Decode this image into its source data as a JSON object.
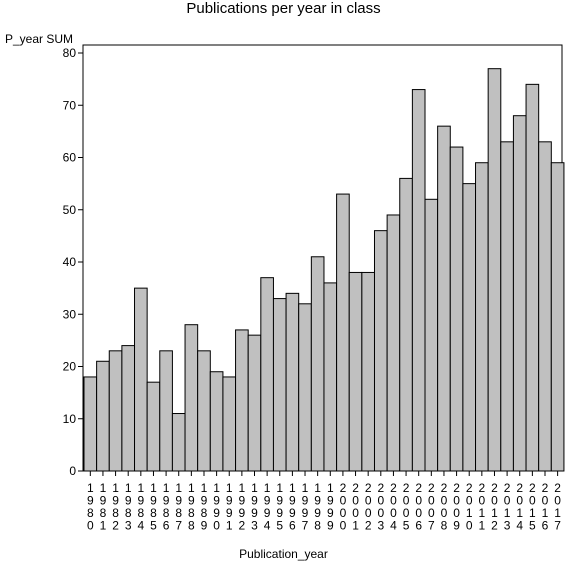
{
  "chart_data": {
    "type": "bar",
    "title": "Publications per year in class",
    "xlabel": "Publication_year",
    "ylabel": "P_year SUM",
    "ylim": [
      0,
      80
    ],
    "yticks": [
      0,
      10,
      20,
      30,
      40,
      50,
      60,
      70,
      80
    ],
    "grid": false,
    "legend": "none",
    "bar_color": "#c0c0c0",
    "categories": [
      "1980",
      "1981",
      "1982",
      "1983",
      "1984",
      "1985",
      "1986",
      "1987",
      "1988",
      "1989",
      "1990",
      "1991",
      "1992",
      "1993",
      "1994",
      "1995",
      "1996",
      "1997",
      "1998",
      "1999",
      "2000",
      "2001",
      "2002",
      "2003",
      "2004",
      "2005",
      "2006",
      "2007",
      "2008",
      "2009",
      "2010",
      "2011",
      "2012",
      "2013",
      "2014",
      "2015",
      "2016",
      "2017"
    ],
    "values": [
      18,
      21,
      23,
      24,
      35,
      17,
      23,
      11,
      28,
      23,
      19,
      18,
      27,
      26,
      37,
      33,
      34,
      32,
      41,
      36,
      53,
      38,
      38,
      46,
      49,
      56,
      73,
      52,
      66,
      62,
      55,
      59,
      77,
      63,
      68,
      74,
      63,
      59
    ]
  }
}
